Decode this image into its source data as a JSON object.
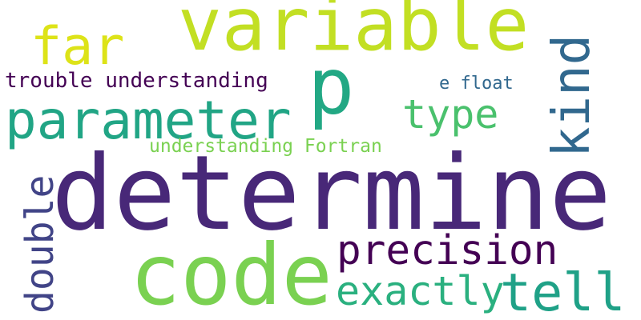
{
  "words": [
    {
      "id": "determine",
      "text": "determine",
      "color": "#482878"
    },
    {
      "id": "variable",
      "text": "variable",
      "color": "#c2df23"
    },
    {
      "id": "code",
      "text": "code",
      "color": "#7ad151"
    },
    {
      "id": "parameter",
      "text": "parameter",
      "color": "#21a585"
    },
    {
      "id": "p",
      "text": "p",
      "color": "#22a884"
    },
    {
      "id": "kind",
      "text": "kind",
      "color": "#31688e"
    },
    {
      "id": "far",
      "text": "far",
      "color": "#dde318"
    },
    {
      "id": "tell",
      "text": "tell",
      "color": "#1fa187"
    },
    {
      "id": "precision",
      "text": "precision",
      "color": "#440154"
    },
    {
      "id": "exactly",
      "text": "exactly",
      "color": "#2ab07f"
    },
    {
      "id": "type",
      "text": "type",
      "color": "#4ac16d"
    },
    {
      "id": "double",
      "text": "double",
      "color": "#414487"
    },
    {
      "id": "trouble-understanding",
      "text": "trouble understanding",
      "color": "#440154"
    },
    {
      "id": "understanding-fortran",
      "text": "understanding Fortran",
      "color": "#7ad151"
    },
    {
      "id": "e-float",
      "text": "e float",
      "color": "#31688e"
    }
  ]
}
